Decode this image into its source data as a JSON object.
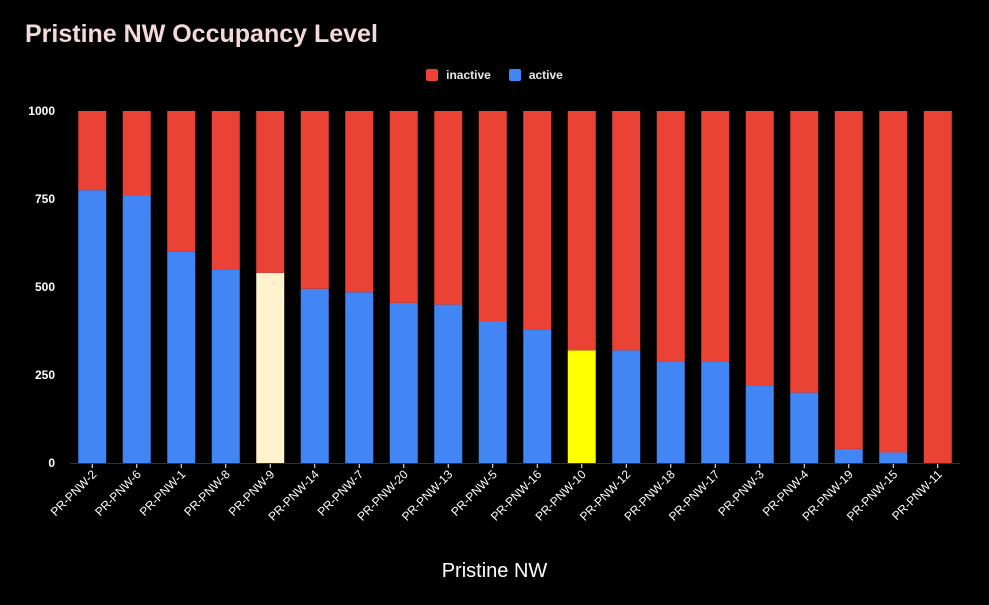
{
  "chart_data": {
    "type": "bar",
    "stacked": true,
    "title": "Pristine NW Occupancy Level",
    "xlabel": "Pristine NW",
    "ylabel": "",
    "ylim": [
      0,
      1000
    ],
    "yticks": [
      0,
      250,
      500,
      750,
      1000
    ],
    "legend": "top-center",
    "grid": false,
    "categories": [
      "PR-PNW-2",
      "PR-PNW-6",
      "PR-PNW-1",
      "PR-PNW-8",
      "PR-PNW-9",
      "PR-PNW-14",
      "PR-PNW-7",
      "PR-PNW-20",
      "PR-PNW-13",
      "PR-PNW-5",
      "PR-PNW-16",
      "PR-PNW-10",
      "PR-PNW-12",
      "PR-PNW-18",
      "PR-PNW-17",
      "PR-PNW-3",
      "PR-PNW-4",
      "PR-PNW-19",
      "PR-PNW-15",
      "PR-PNW-11"
    ],
    "series": [
      {
        "name": "inactive",
        "color": "#ea4335",
        "values": [
          225,
          240,
          400,
          450,
          460,
          505,
          515,
          545,
          550,
          598,
          622,
          680,
          680,
          713,
          713,
          780,
          800,
          960,
          970,
          1000
        ]
      },
      {
        "name": "active",
        "color": "#4285f4",
        "values": [
          775,
          760,
          600,
          550,
          540,
          495,
          485,
          455,
          450,
          402,
          378,
          320,
          320,
          287,
          287,
          220,
          200,
          40,
          30,
          0
        ]
      }
    ],
    "highlights": [
      {
        "category": "PR-PNW-9",
        "series": "active",
        "color": "#fff2cc"
      },
      {
        "category": "PR-PNW-10",
        "series": "active",
        "color": "#ffff00"
      }
    ]
  }
}
